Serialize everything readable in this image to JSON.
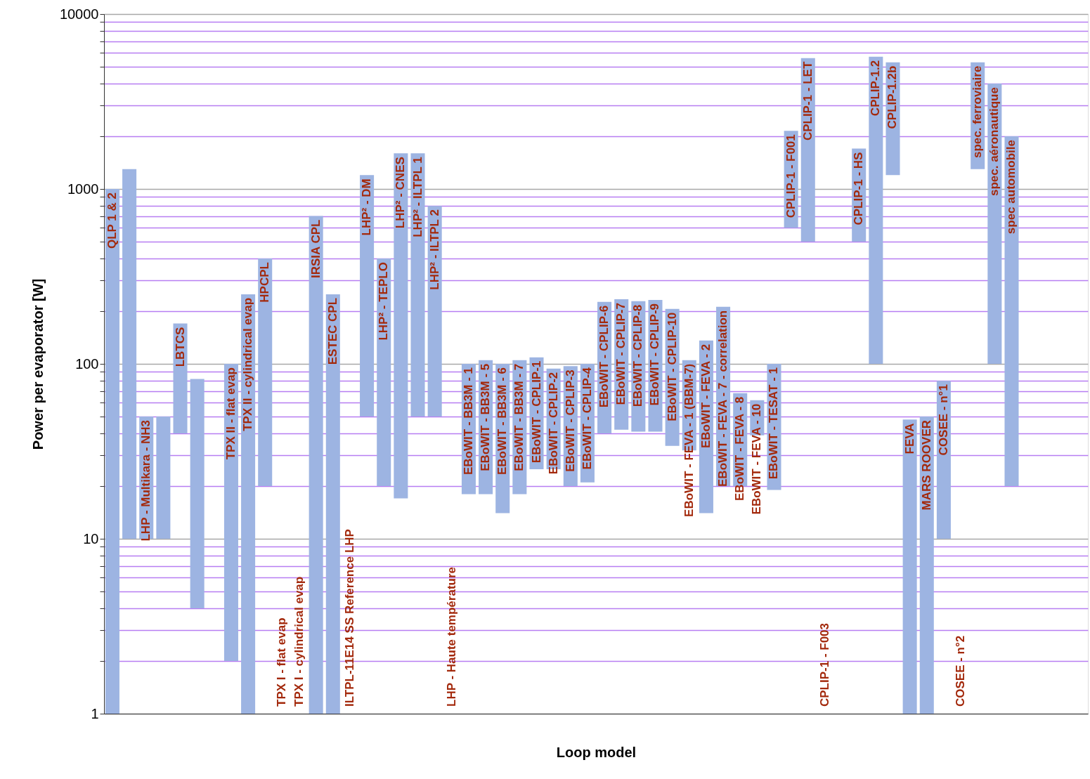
{
  "chart_data": {
    "type": "bar",
    "xlabel": "Loop model",
    "ylabel": "Power per evaporator [W]",
    "categories": [
      "QLP 1 & 2",
      null,
      "LHP - Multikara - NH3",
      null,
      "LBTCS",
      null,
      null,
      "TPX II - flat evap",
      "TPX II - cylindrical evap",
      "HPCPL",
      "TPX I - flat evap",
      "TPX I - cylindrical evap",
      "IRSIA CPL",
      "ESTEC CPL",
      "ILTPL-11E14 SS Reference LHP",
      "LHP² - DM",
      "LHP² - TEPLO",
      "LHP² - CNES",
      "LHP² - ILTPL 1",
      "LHP² - ILTPL 2",
      "LHP - Haute température",
      "EBoWIT - BB3M - 1",
      "EBoWIT - BB3M - 5",
      "EBoWIT - BB3M - 6",
      "EBoWIT - BB3M - 7",
      "EBoWIT - CPLIP-1",
      "EBoWIT - CPLIP-2",
      "EBoWIT - CPLIP-3",
      "EBoWIT - CPLIP-4",
      "EBoWIT - CPLIP-6",
      "EBoWIT - CPLIP-7",
      "EBoWIT - CPLIP-8",
      "EBoWIT - CPLIP-9",
      "EBoWIT - CPLIP-10",
      "EBoWIT - FEVA - 1 (BBM-7)",
      "EBoWIT - FEVA - 2",
      "EBoWIT - FEVA - 7 - correlation",
      "EBoWIT - FEVA - 8",
      "EBoWIT - FEVA - 10",
      "EBoWIT - TESAT - 1",
      "CPLIP-1 - F001",
      "CPLIP-1 - LET",
      "CPLIP-1 - F003",
      null,
      "CPLIP-1 - HS",
      "CPLIP-1.2",
      "CPLIP-1.2b",
      "FEVA",
      "MARS ROOVER",
      "COSEE - n°1",
      "COSEE - n°2",
      "spec. ferroviaire",
      "spec. aéronautique",
      "spec automobile",
      null,
      null,
      null,
      null
    ],
    "base": [
      1,
      10,
      10,
      10,
      40,
      4,
      null,
      2,
      1,
      20,
      null,
      null,
      1,
      1,
      null,
      50,
      20,
      17,
      50,
      50,
      null,
      18,
      18,
      14,
      18,
      25,
      25,
      20,
      21,
      40,
      42,
      41,
      41,
      34,
      32,
      14,
      20,
      20,
      39,
      19,
      600,
      500,
      null,
      null,
      500,
      100,
      1200,
      1,
      1,
      10,
      null,
      1300,
      100,
      20,
      null,
      null,
      null,
      null
    ],
    "values": [
      999,
      1290,
      40,
      40,
      130,
      78,
      null,
      98,
      249,
      380,
      null,
      null,
      699,
      249,
      null,
      1150,
      380,
      1583,
      1550,
      750,
      null,
      82,
      87,
      86,
      87,
      84,
      69,
      77,
      79,
      186,
      192,
      187,
      191,
      172,
      73,
      122,
      192,
      48,
      23,
      81,
      1550,
      5100,
      null,
      null,
      1200,
      5600,
      4100,
      47,
      49,
      70,
      null,
      4000,
      3900,
      1980,
      null,
      null,
      null,
      null
    ],
    "color": "#9db4e2",
    "log": true,
    "ylim": [
      1,
      10000
    ],
    "yticks": [
      1,
      {
        "value": 2,
        "label": null
      },
      {
        "value": 3,
        "label": null
      },
      {
        "value": 4,
        "label": null
      },
      {
        "value": 5,
        "label": null
      },
      {
        "value": 6,
        "label": null
      },
      {
        "value": 7,
        "label": null
      },
      {
        "value": 8,
        "label": null
      },
      {
        "value": 9,
        "label": null
      },
      10,
      {
        "value": 20,
        "label": null
      },
      {
        "value": 30,
        "label": null
      },
      {
        "value": 40,
        "label": null
      },
      {
        "value": 50,
        "label": null
      },
      {
        "value": 60,
        "label": null
      },
      {
        "value": 70,
        "label": null
      },
      {
        "value": 80,
        "label": null
      },
      {
        "value": 90,
        "label": null
      },
      100,
      {
        "value": 200,
        "label": null
      },
      {
        "value": 300,
        "label": null
      },
      {
        "value": 400,
        "label": null
      },
      {
        "value": 500,
        "label": null
      },
      {
        "value": 600,
        "label": null
      },
      {
        "value": 700,
        "label": null
      },
      {
        "value": 800,
        "label": null
      },
      {
        "value": 900,
        "label": null
      },
      1000,
      {
        "value": 2000,
        "label": null
      },
      {
        "value": 3000,
        "label": null
      },
      {
        "value": 4000,
        "label": null
      },
      {
        "value": 5000,
        "label": null
      },
      {
        "value": 6000,
        "label": null
      },
      {
        "value": 7000,
        "label": null
      },
      {
        "value": 8000,
        "label": null
      },
      {
        "value": 9000,
        "label": null
      },
      10000
    ],
    "grid": "y",
    "tick_labels": "y"
  }
}
